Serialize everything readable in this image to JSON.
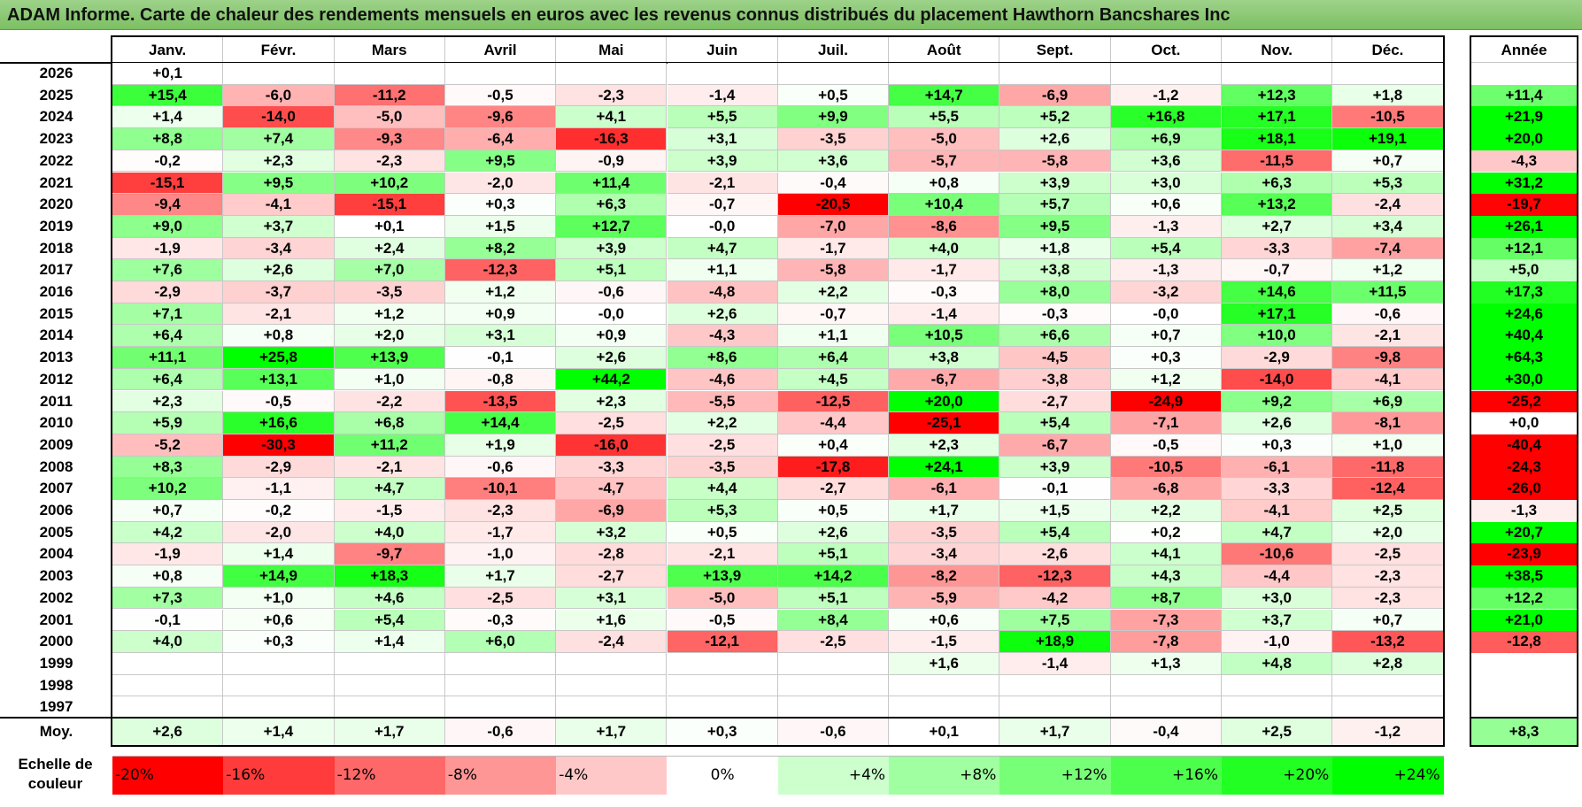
{
  "title": "ADAM Informe. Carte de chaleur des rendements mensuels en euros avec les revenus connus distribués du placement Hawthorn Bancshares Inc",
  "chart_data": {
    "type": "heatmap",
    "columns": [
      "Janv.",
      "Févr.",
      "Mars",
      "Avril",
      "Mai",
      "Juin",
      "Juil.",
      "Août",
      "Sept.",
      "Oct.",
      "Nov.",
      "Déc."
    ],
    "year_column": "Année",
    "rows": [
      {
        "year": "2026",
        "values": [
          "+0,1",
          "",
          "",
          "",
          "",
          "",
          "",
          "",
          "",
          "",
          "",
          ""
        ],
        "annual": ""
      },
      {
        "year": "2025",
        "values": [
          "+15,4",
          "-6,0",
          "-11,2",
          "-0,5",
          "-2,3",
          "-1,4",
          "+0,5",
          "+14,7",
          "-6,9",
          "-1,2",
          "+12,3",
          "+1,8"
        ],
        "annual": "+11,4"
      },
      {
        "year": "2024",
        "values": [
          "+1,4",
          "-14,0",
          "-5,0",
          "-9,6",
          "+4,1",
          "+5,5",
          "+9,9",
          "+5,5",
          "+5,2",
          "+16,8",
          "+17,1",
          "-10,5"
        ],
        "annual": "+21,9"
      },
      {
        "year": "2023",
        "values": [
          "+8,8",
          "+7,4",
          "-9,3",
          "-6,4",
          "-16,3",
          "+3,1",
          "-3,5",
          "-5,0",
          "+2,6",
          "+6,9",
          "+18,1",
          "+19,1"
        ],
        "annual": "+20,0"
      },
      {
        "year": "2022",
        "values": [
          "-0,2",
          "+2,3",
          "-2,3",
          "+9,5",
          "-0,9",
          "+3,9",
          "+3,6",
          "-5,7",
          "-5,8",
          "+3,6",
          "-11,5",
          "+0,7"
        ],
        "annual": "-4,3"
      },
      {
        "year": "2021",
        "values": [
          "-15,1",
          "+9,5",
          "+10,2",
          "-2,0",
          "+11,4",
          "-2,1",
          "-0,4",
          "+0,8",
          "+3,9",
          "+3,0",
          "+6,3",
          "+5,3"
        ],
        "annual": "+31,2"
      },
      {
        "year": "2020",
        "values": [
          "-9,4",
          "-4,1",
          "-15,1",
          "+0,3",
          "+6,3",
          "-0,7",
          "-20,5",
          "+10,4",
          "+5,7",
          "+0,6",
          "+13,2",
          "-2,4"
        ],
        "annual": "-19,7"
      },
      {
        "year": "2019",
        "values": [
          "+9,0",
          "+3,7",
          "+0,1",
          "+1,5",
          "+12,7",
          "-0,0",
          "-7,0",
          "-8,6",
          "+9,5",
          "-1,3",
          "+2,7",
          "+3,4"
        ],
        "annual": "+26,1"
      },
      {
        "year": "2018",
        "values": [
          "-1,9",
          "-3,4",
          "+2,4",
          "+8,2",
          "+3,9",
          "+4,7",
          "-1,7",
          "+4,0",
          "+1,8",
          "+5,4",
          "-3,3",
          "-7,4"
        ],
        "annual": "+12,1"
      },
      {
        "year": "2017",
        "values": [
          "+7,6",
          "+2,6",
          "+7,0",
          "-12,3",
          "+5,1",
          "+1,1",
          "-5,8",
          "-1,7",
          "+3,8",
          "-1,3",
          "-0,7",
          "+1,2"
        ],
        "annual": "+5,0"
      },
      {
        "year": "2016",
        "values": [
          "-2,9",
          "-3,7",
          "-3,5",
          "+1,2",
          "-0,6",
          "-4,8",
          "+2,2",
          "-0,3",
          "+8,0",
          "-3,2",
          "+14,6",
          "+11,5"
        ],
        "annual": "+17,3"
      },
      {
        "year": "2015",
        "values": [
          "+7,1",
          "-2,1",
          "+1,2",
          "+0,9",
          "-0,0",
          "+2,6",
          "-0,7",
          "-1,4",
          "-0,3",
          "-0,0",
          "+17,1",
          "-0,6"
        ],
        "annual": "+24,6"
      },
      {
        "year": "2014",
        "values": [
          "+6,4",
          "+0,8",
          "+2,0",
          "+3,1",
          "+0,9",
          "-4,3",
          "+1,1",
          "+10,5",
          "+6,6",
          "+0,7",
          "+10,0",
          "-2,1"
        ],
        "annual": "+40,4"
      },
      {
        "year": "2013",
        "values": [
          "+11,1",
          "+25,8",
          "+13,9",
          "-0,1",
          "+2,6",
          "+8,6",
          "+6,4",
          "+3,8",
          "-4,5",
          "+0,3",
          "-2,9",
          "-9,8"
        ],
        "annual": "+64,3"
      },
      {
        "year": "2012",
        "values": [
          "+6,4",
          "+13,1",
          "+1,0",
          "-0,8",
          "+44,2",
          "-4,6",
          "+4,5",
          "-6,7",
          "-3,8",
          "+1,2",
          "-14,0",
          "-4,1"
        ],
        "annual": "+30,0"
      },
      {
        "year": "2011",
        "values": [
          "+2,3",
          "-0,5",
          "-2,2",
          "-13,5",
          "+2,3",
          "-5,5",
          "-12,5",
          "+20,0",
          "-2,7",
          "-24,9",
          "+9,2",
          "+6,9"
        ],
        "annual": "-25,2"
      },
      {
        "year": "2010",
        "values": [
          "+5,9",
          "+16,6",
          "+6,8",
          "+14,4",
          "-2,5",
          "+2,2",
          "-4,4",
          "-25,1",
          "+5,4",
          "-7,1",
          "+2,6",
          "-8,1"
        ],
        "annual": "+0,0"
      },
      {
        "year": "2009",
        "values": [
          "-5,2",
          "-30,3",
          "+11,2",
          "+1,9",
          "-16,0",
          "-2,5",
          "+0,4",
          "+2,3",
          "-6,7",
          "-0,5",
          "+0,3",
          "+1,0"
        ],
        "annual": "-40,4"
      },
      {
        "year": "2008",
        "values": [
          "+8,3",
          "-2,9",
          "-2,1",
          "-0,6",
          "-3,3",
          "-3,5",
          "-17,8",
          "+24,1",
          "+3,9",
          "-10,5",
          "-6,1",
          "-11,8"
        ],
        "annual": "-24,3"
      },
      {
        "year": "2007",
        "values": [
          "+10,2",
          "-1,1",
          "+4,7",
          "-10,1",
          "-4,7",
          "+4,4",
          "-2,7",
          "-6,1",
          "-0,1",
          "-6,8",
          "-3,3",
          "-12,4"
        ],
        "annual": "-26,0"
      },
      {
        "year": "2006",
        "values": [
          "+0,7",
          "-0,2",
          "-1,5",
          "-2,3",
          "-6,9",
          "+5,3",
          "+0,5",
          "+1,7",
          "+1,5",
          "+2,2",
          "-4,1",
          "+2,5"
        ],
        "annual": "-1,3"
      },
      {
        "year": "2005",
        "values": [
          "+4,2",
          "-2,0",
          "+4,0",
          "-1,7",
          "+3,2",
          "+0,5",
          "+2,6",
          "-3,5",
          "+5,4",
          "+0,2",
          "+4,7",
          "+2,0"
        ],
        "annual": "+20,7"
      },
      {
        "year": "2004",
        "values": [
          "-1,9",
          "+1,4",
          "-9,7",
          "-1,0",
          "-2,8",
          "-2,1",
          "+5,1",
          "-3,4",
          "-2,6",
          "+4,1",
          "-10,6",
          "-2,5"
        ],
        "annual": "-23,9"
      },
      {
        "year": "2003",
        "values": [
          "+0,8",
          "+14,9",
          "+18,3",
          "+1,7",
          "-2,7",
          "+13,9",
          "+14,2",
          "-8,2",
          "-12,3",
          "+4,3",
          "-4,4",
          "-2,3"
        ],
        "annual": "+38,5"
      },
      {
        "year": "2002",
        "values": [
          "+7,3",
          "+1,0",
          "+4,6",
          "-2,5",
          "+3,1",
          "-5,0",
          "+5,1",
          "-5,9",
          "-4,2",
          "+8,7",
          "+3,0",
          "-2,3"
        ],
        "annual": "+12,2"
      },
      {
        "year": "2001",
        "values": [
          "-0,1",
          "+0,6",
          "+5,4",
          "-0,3",
          "+1,6",
          "-0,5",
          "+8,4",
          "+0,6",
          "+7,5",
          "-7,3",
          "+3,7",
          "+0,7"
        ],
        "annual": "+21,0"
      },
      {
        "year": "2000",
        "values": [
          "+4,0",
          "+0,3",
          "+1,4",
          "+6,0",
          "-2,4",
          "-12,1",
          "-2,5",
          "-1,5",
          "+18,9",
          "-7,8",
          "-1,0",
          "-13,2"
        ],
        "annual": "-12,8"
      },
      {
        "year": "1999",
        "values": [
          "",
          "",
          "",
          "",
          "",
          "",
          "",
          "+1,6",
          "-1,4",
          "+1,3",
          "+4,8",
          "+2,8"
        ],
        "annual": ""
      },
      {
        "year": "1998",
        "values": [
          "",
          "",
          "",
          "",
          "",
          "",
          "",
          "",
          "",
          "",
          "",
          ""
        ],
        "annual": ""
      },
      {
        "year": "1997",
        "values": [
          "",
          "",
          "",
          "",
          "",
          "",
          "",
          "",
          "",
          "",
          "",
          ""
        ],
        "annual": ""
      }
    ],
    "average": {
      "label": "Moy.",
      "values": [
        "+2,6",
        "+1,4",
        "+1,7",
        "-0,6",
        "+1,7",
        "+0,3",
        "-0,6",
        "+0,1",
        "+1,7",
        "-0,4",
        "+2,5",
        "-1,2"
      ],
      "annual": "+8,3"
    },
    "scale": {
      "label": "Echelle de couleur",
      "steps": [
        {
          "label": "-20%",
          "value": -20,
          "color": "#ff0000",
          "align": "left"
        },
        {
          "label": "-16%",
          "value": -16,
          "color": "#ff3b3b",
          "align": "left"
        },
        {
          "label": "-12%",
          "value": -12,
          "color": "#ff6868",
          "align": "left"
        },
        {
          "label": "-8%",
          "value": -8,
          "color": "#ff9696",
          "align": "left"
        },
        {
          "label": "-4%",
          "value": -4,
          "color": "#ffc8c8",
          "align": "left"
        },
        {
          "label": "0%",
          "value": 0,
          "color": "#ffffff",
          "align": "center"
        },
        {
          "label": "+4%",
          "value": 4,
          "color": "#ccffcc",
          "align": "right"
        },
        {
          "label": "+8%",
          "value": 8,
          "color": "#a0ffa0",
          "align": "right"
        },
        {
          "label": "+12%",
          "value": 12,
          "color": "#78ff78",
          "align": "right"
        },
        {
          "label": "+16%",
          "value": 16,
          "color": "#4cff4c",
          "align": "right"
        },
        {
          "label": "+20%",
          "value": 20,
          "color": "#22ff22",
          "align": "right"
        },
        {
          "label": "+24%",
          "value": 24,
          "color": "#00ff00",
          "align": "right"
        }
      ]
    },
    "colors": {
      "negative_max": "#ff0000",
      "neutral": "#ffffff",
      "positive_max": "#00ff00",
      "title_bar": "#8ccb75"
    }
  }
}
